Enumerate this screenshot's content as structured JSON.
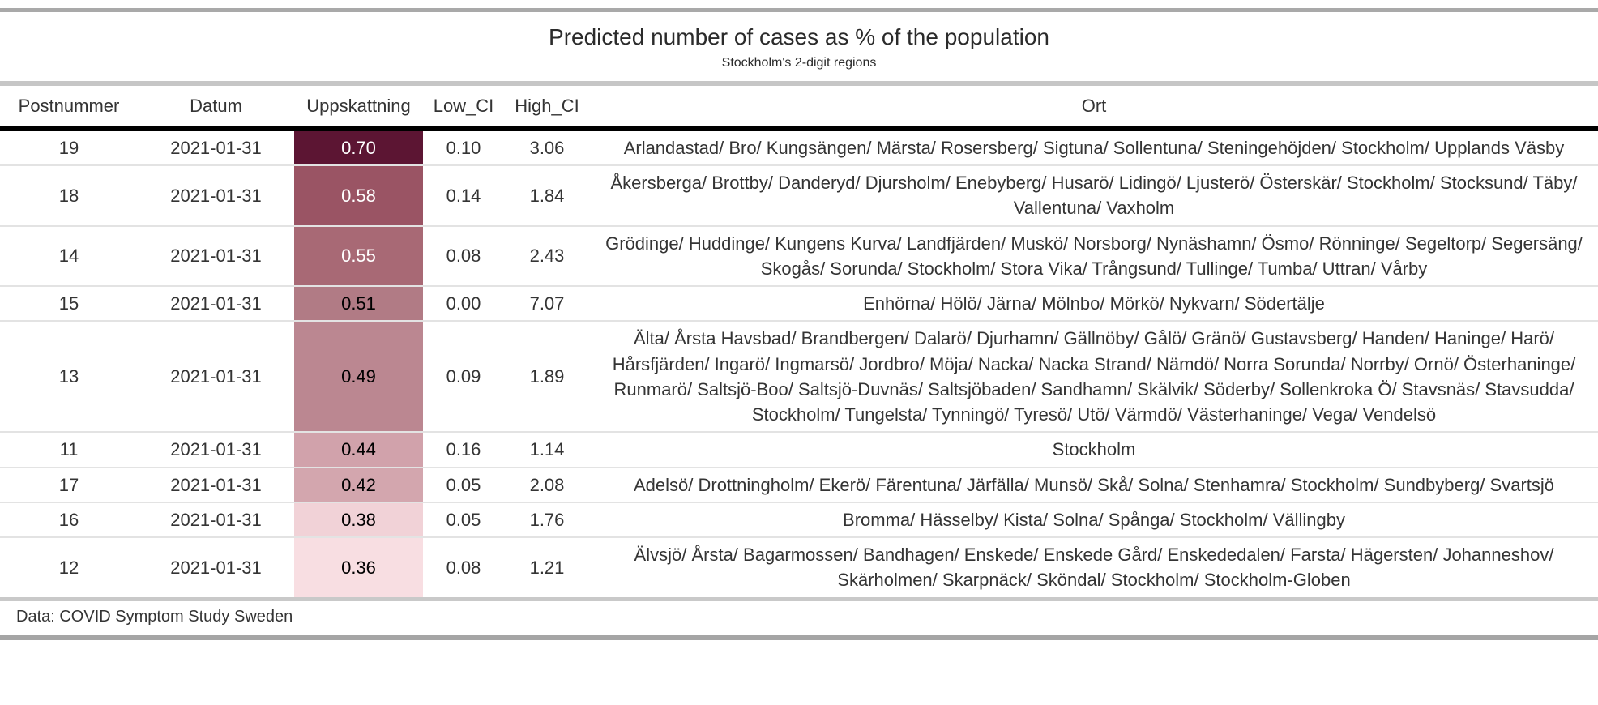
{
  "chart_data": {
    "type": "table",
    "title": "Predicted number of cases as % of the population",
    "subtitle": "Stockholm's 2-digit regions",
    "source_note": "Data: COVID Symptom Study Sweden",
    "columns": [
      "Postnummer",
      "Datum",
      "Uppskattning",
      "Low_CI",
      "High_CI",
      "Ort"
    ],
    "rows": [
      {
        "postnummer": "19",
        "datum": "2021-01-31",
        "uppskattning": "0.70",
        "low_ci": "0.10",
        "high_ci": "3.06",
        "ort": "Arlandastad/ Bro/ Kungsängen/ Märsta/ Rosersberg/ Sigtuna/ Sollentuna/ Steningehöjden/ Stockholm/ Upplands Väsby",
        "bg": "#5c1533",
        "fg": "#ffffff"
      },
      {
        "postnummer": "18",
        "datum": "2021-01-31",
        "uppskattning": "0.58",
        "low_ci": "0.14",
        "high_ci": "1.84",
        "ort": "Åkersberga/ Brottby/ Danderyd/ Djursholm/ Enebyberg/ Husarö/ Lidingö/ Ljusterö/ Österskär/ Stockholm/ Stocksund/ Täby/ Vallentuna/ Vaxholm",
        "bg": "#9a5464",
        "fg": "#ffffff"
      },
      {
        "postnummer": "14",
        "datum": "2021-01-31",
        "uppskattning": "0.55",
        "low_ci": "0.08",
        "high_ci": "2.43",
        "ort": "Grödinge/ Huddinge/ Kungens Kurva/ Landfjärden/ Muskö/ Norsborg/ Nynäshamn/ Ösmo/ Rönninge/ Segeltorp/ Segersäng/ Skogås/ Sorunda/ Stockholm/ Stora Vika/ Trångsund/ Tullinge/ Tumba/ Uttran/ Vårby",
        "bg": "#a86975",
        "fg": "#ffffff"
      },
      {
        "postnummer": "15",
        "datum": "2021-01-31",
        "uppskattning": "0.51",
        "low_ci": "0.00",
        "high_ci": "7.07",
        "ort": "Enhörna/ Hölö/ Järna/ Mölnbo/ Mörkö/ Nykvarn/ Södertälje",
        "bg": "#b17b85",
        "fg": "#000000"
      },
      {
        "postnummer": "13",
        "datum": "2021-01-31",
        "uppskattning": "0.49",
        "low_ci": "0.09",
        "high_ci": "1.89",
        "ort": "Älta/ Årsta Havsbad/ Brandbergen/ Dalarö/ Djurhamn/ Gällnöby/ Gålö/ Gränö/ Gustavsberg/ Handen/ Haninge/ Harö/ Hårsfjärden/ Ingarö/ Ingmarsö/ Jordbro/ Möja/ Nacka/ Nacka Strand/ Nämdö/ Norra Sorunda/ Norrby/ Ornö/ Österhaninge/ Runmarö/ Saltsjö-Boo/ Saltsjö-Duvnäs/ Saltsjöbaden/ Sandhamn/ Skälvik/ Söderby/ Sollenkroka Ö/ Stavsnäs/ Stavsudda/ Stockholm/ Tungelsta/ Tynningö/ Tyresö/ Utö/ Värmdö/ Västerhaninge/ Vega/ Vendelsö",
        "bg": "#bb8791",
        "fg": "#000000"
      },
      {
        "postnummer": "11",
        "datum": "2021-01-31",
        "uppskattning": "0.44",
        "low_ci": "0.16",
        "high_ci": "1.14",
        "ort": "Stockholm",
        "bg": "#d1a2ab",
        "fg": "#000000"
      },
      {
        "postnummer": "17",
        "datum": "2021-01-31",
        "uppskattning": "0.42",
        "low_ci": "0.05",
        "high_ci": "2.08",
        "ort": "Adelsö/ Drottningholm/ Ekerö/ Färentuna/ Järfälla/ Munsö/ Skå/ Solna/ Stenhamra/ Stockholm/ Sundbyberg/ Svartsjö",
        "bg": "#d3a6ae",
        "fg": "#000000"
      },
      {
        "postnummer": "16",
        "datum": "2021-01-31",
        "uppskattning": "0.38",
        "low_ci": "0.05",
        "high_ci": "1.76",
        "ort": "Bromma/ Hässelby/ Kista/ Solna/ Spånga/ Stockholm/ Vällingby",
        "bg": "#f1d2d7",
        "fg": "#000000"
      },
      {
        "postnummer": "12",
        "datum": "2021-01-31",
        "uppskattning": "0.36",
        "low_ci": "0.08",
        "high_ci": "1.21",
        "ort": "Älvsjö/ Årsta/ Bagarmossen/ Bandhagen/ Enskede/ Enskede Gård/ Enskededalen/ Farsta/ Hägersten/ Johanneshov/ Skärholmen/ Skarpnäck/ Sköndal/ Stockholm/ Stockholm-Globen",
        "bg": "#f8dee2",
        "fg": "#000000"
      }
    ],
    "layout_hints": {
      "heat_column": "Uppskattning",
      "heat_scale_min": 0.36,
      "heat_scale_max": 0.7,
      "heat_color_dark": "#5c1533",
      "heat_color_light": "#f8dee2"
    }
  }
}
